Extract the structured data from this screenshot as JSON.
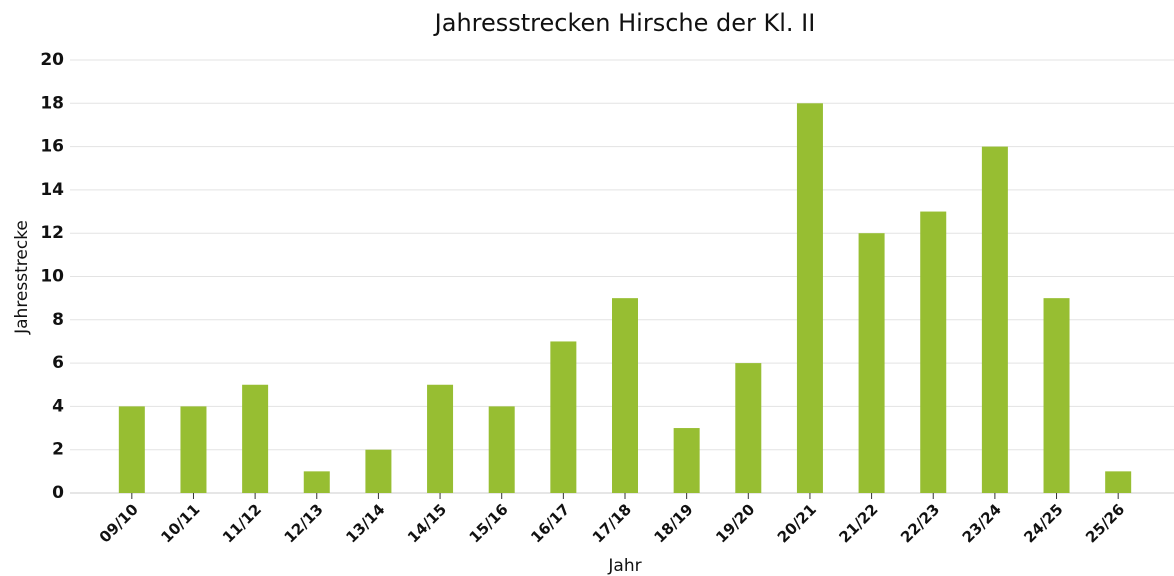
{
  "chart_data": {
    "type": "bar",
    "title": "Jahresstrecken Hirsche der Kl. II",
    "x_label": "Jahr",
    "y_label": "Jahresstrecke",
    "categories": [
      "09/10",
      "10/11",
      "11/12",
      "12/13",
      "13/14",
      "14/15",
      "15/16",
      "16/17",
      "17/18",
      "18/19",
      "19/20",
      "20/21",
      "21/22",
      "22/23",
      "23/24",
      "24/25",
      "25/26"
    ],
    "values": [
      4,
      4,
      5,
      1,
      2,
      5,
      4,
      7,
      9,
      3,
      6,
      18,
      12,
      13,
      16,
      9,
      1
    ],
    "color": "#97be32",
    "ylim": [
      0,
      20
    ],
    "yticks": [
      0,
      2,
      4,
      6,
      8,
      10,
      12,
      14,
      16,
      18,
      20
    ],
    "grid": true
  }
}
